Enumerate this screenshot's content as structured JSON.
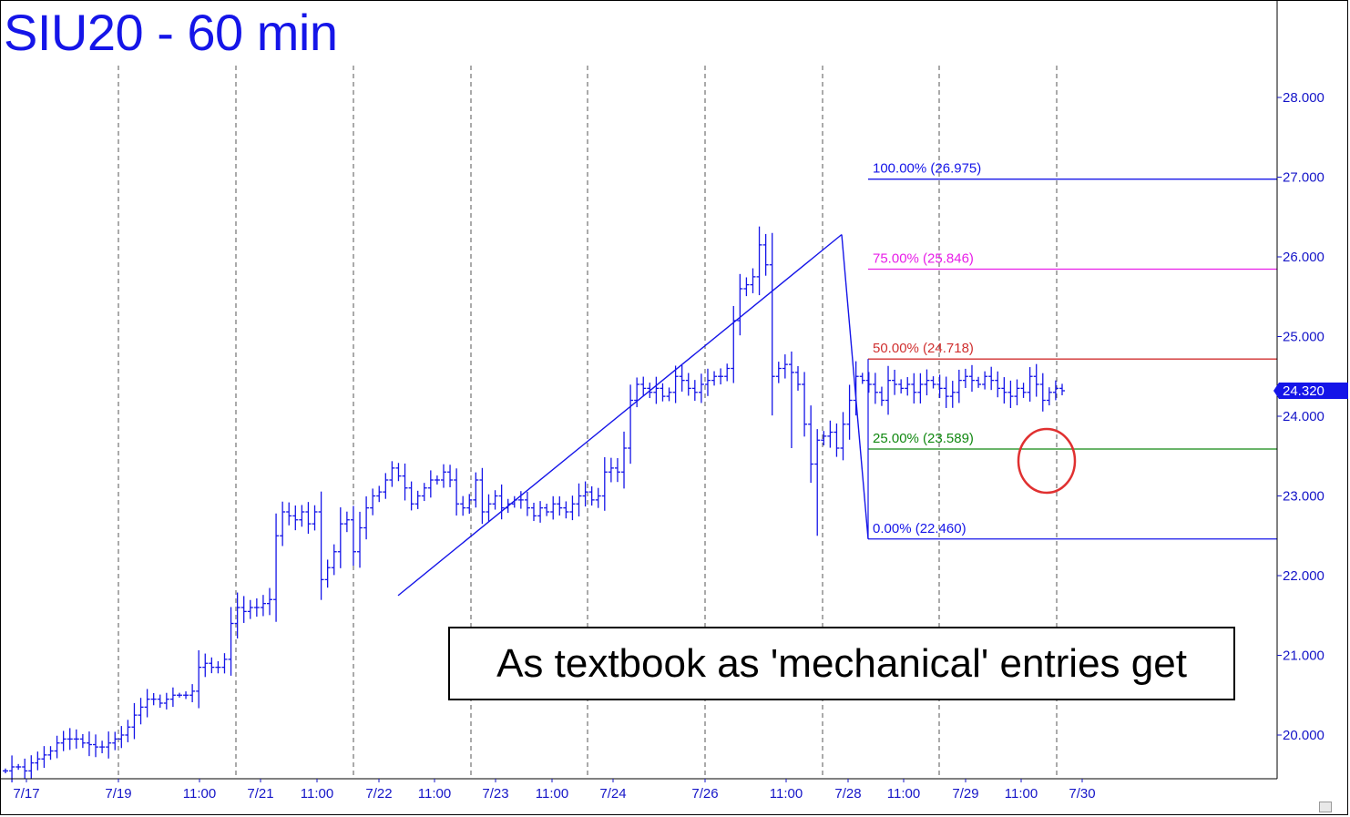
{
  "title": "SIU20 - 60 min",
  "annotation": "As textbook as 'mechanical' entries get",
  "colors": {
    "price": "#1515e8",
    "axis_text": "#1515c8",
    "fib_100": "#1515e8",
    "fib_75": "#e81ee8",
    "fib_50": "#d03030",
    "fib_25": "#118811",
    "fib_0": "#1515e8",
    "circle": "#e03030",
    "last_price_bg": "#1515e8"
  },
  "chart_data": {
    "type": "ohlc",
    "title": "SIU20 - 60 min",
    "ylim": [
      19.5,
      29.0
    ],
    "y_ticks": [
      "20.000",
      "21.000",
      "22.000",
      "23.000",
      "24.000",
      "25.000",
      "26.000",
      "27.000",
      "28.000"
    ],
    "last_price": "24.320",
    "x_tick_labels": [
      "7/17",
      "7/19",
      "11:00",
      "7/21",
      "11:00",
      "7/22",
      "11:00",
      "7/23",
      "11:00",
      "7/24",
      "7/26",
      "11:00",
      "7/28",
      "11:00",
      "7/29",
      "11:00",
      "7/30"
    ],
    "fib_levels": [
      {
        "label": "100.00% (26.975)",
        "value": 26.975,
        "color_key": "fib_100"
      },
      {
        "label": "75.00% (25.846)",
        "value": 25.846,
        "color_key": "fib_75"
      },
      {
        "label": "50.00% (24.718)",
        "value": 24.718,
        "color_key": "fib_50"
      },
      {
        "label": "25.00% (23.589)",
        "value": 23.589,
        "color_key": "fib_25"
      },
      {
        "label": "0.00% (22.460)",
        "value": 22.46,
        "color_key": "fib_0"
      }
    ],
    "trendline": {
      "from": 21.75,
      "to": 26.28
    },
    "close_path": [
      19.55,
      19.6,
      19.6,
      19.55,
      19.65,
      19.7,
      19.75,
      19.8,
      19.9,
      19.95,
      19.95,
      19.95,
      19.9,
      19.88,
      19.85,
      19.85,
      19.9,
      19.95,
      20.0,
      20.1,
      20.25,
      20.35,
      20.45,
      20.45,
      20.4,
      20.45,
      20.5,
      20.5,
      20.5,
      20.55,
      20.85,
      20.9,
      20.85,
      20.85,
      20.95,
      21.4,
      21.6,
      21.55,
      21.6,
      21.6,
      21.65,
      21.7,
      22.5,
      22.8,
      22.75,
      22.7,
      22.8,
      22.65,
      22.8,
      21.95,
      22.1,
      22.3,
      22.65,
      22.7,
      22.3,
      22.6,
      22.85,
      23.0,
      23.05,
      23.2,
      23.35,
      23.25,
      23.1,
      22.9,
      23.0,
      23.1,
      23.2,
      23.2,
      23.3,
      23.2,
      22.9,
      22.85,
      22.95,
      23.2,
      22.8,
      22.9,
      23.0,
      22.85,
      22.9,
      22.95,
      22.95,
      22.85,
      22.75,
      22.85,
      22.8,
      22.9,
      22.85,
      22.8,
      22.9,
      23.0,
      23.05,
      22.95,
      23.0,
      23.3,
      23.35,
      23.3,
      23.6,
      24.2,
      24.4,
      24.35,
      24.3,
      24.35,
      24.25,
      24.3,
      24.5,
      24.45,
      24.35,
      24.3,
      24.4,
      24.45,
      24.5,
      24.5,
      24.6,
      25.2,
      25.6,
      25.65,
      25.75,
      26.15,
      25.9,
      24.5,
      24.6,
      24.65,
      24.55,
      24.4,
      23.9,
      23.4,
      23.7,
      23.75,
      23.8,
      23.6,
      23.9,
      24.2,
      24.5,
      24.45,
      24.4,
      24.3,
      24.2,
      24.45,
      24.4,
      24.35,
      24.4,
      24.3,
      24.4,
      24.45,
      24.4,
      24.35,
      24.25,
      24.3,
      24.45,
      24.5,
      24.45,
      24.4,
      24.5,
      24.45,
      24.35,
      24.3,
      24.25,
      24.35,
      24.3,
      24.5,
      24.4,
      24.2,
      24.3,
      24.35,
      24.32
    ]
  }
}
